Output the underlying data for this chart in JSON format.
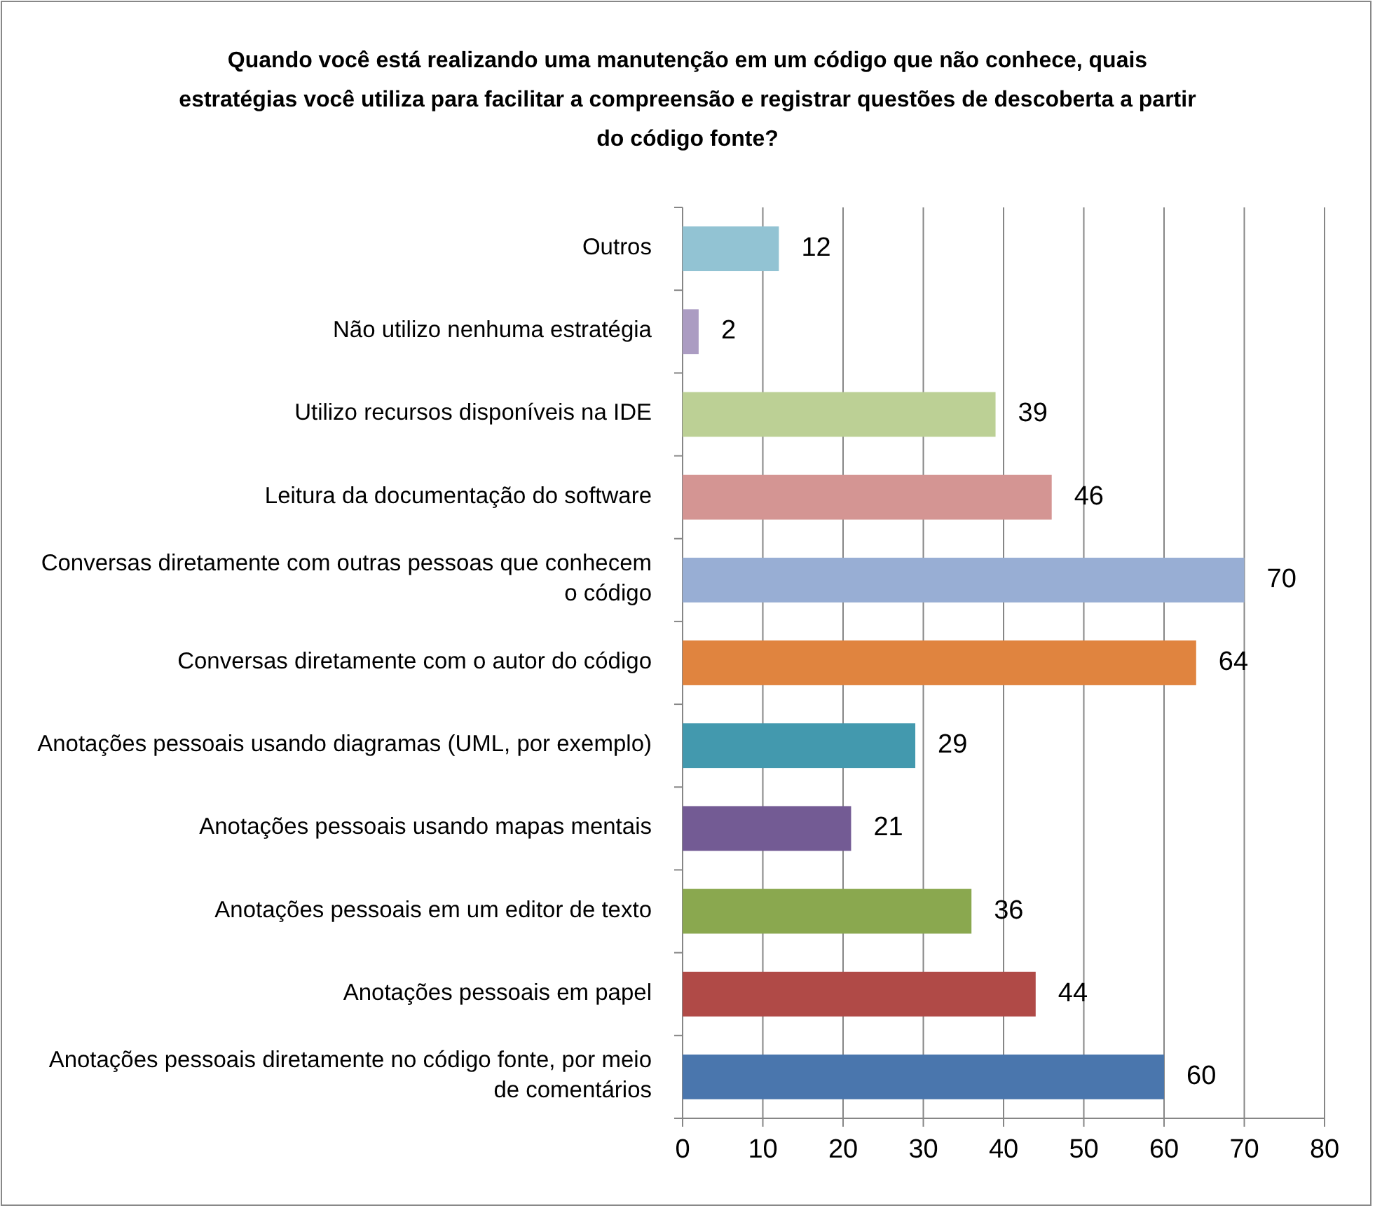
{
  "chart_data": {
    "type": "bar",
    "orientation": "horizontal",
    "title": "Quando você está realizando uma manutenção em um código que não conhece, quais estratégias você utiliza para facilitar a compreensão e registrar questões de descoberta a partir do código fonte?",
    "categories": [
      "Outros",
      "Não utilizo nenhuma estratégia",
      "Utilizo recursos disponíveis na IDE",
      "Leitura da documentação do software",
      "Conversas diretamente com outras pessoas que conhecem o código",
      "Conversas diretamente com o autor do código",
      "Anotações pessoais usando diagramas (UML, por exemplo)",
      "Anotações pessoais usando mapas mentais",
      "Anotações pessoais em um editor de texto",
      "Anotações pessoais em papel",
      "Anotações pessoais diretamente no código fonte, por meio de comentários"
    ],
    "values": [
      12,
      2,
      39,
      46,
      70,
      64,
      29,
      21,
      36,
      44,
      60
    ],
    "colors": [
      "#92c3d3",
      "#ab9cc2",
      "#bcd095",
      "#d49593",
      "#98aed4",
      "#e0843f",
      "#4399ae",
      "#735b94",
      "#8aa84f",
      "#b04a47",
      "#4a76ad"
    ],
    "xlim": [
      0,
      80
    ],
    "xticks": [
      0,
      10,
      20,
      30,
      40,
      50,
      60,
      70,
      80
    ],
    "grid": "x",
    "data_labels": true
  }
}
